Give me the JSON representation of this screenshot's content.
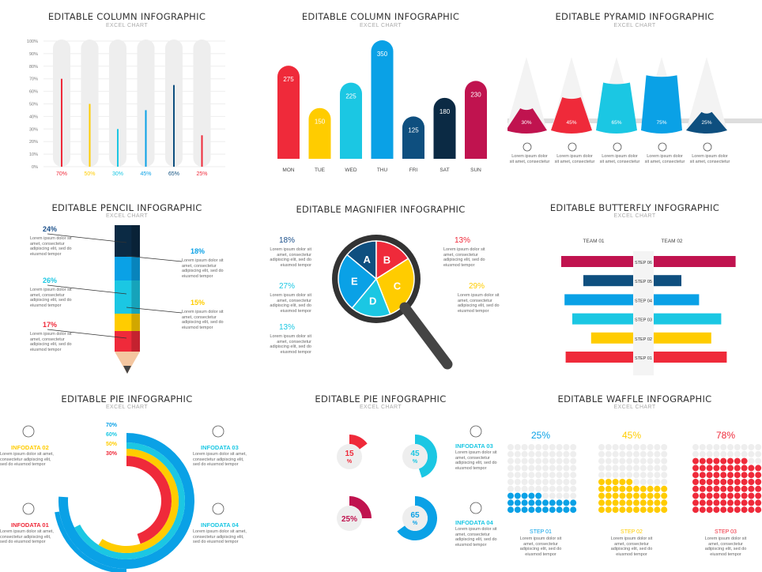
{
  "colors": {
    "red": "#ef2a3a",
    "yellow": "#ffcc00",
    "cyan": "#1bc7e3",
    "blue": "#0aa1e6",
    "navy": "#0e4f7f",
    "dark": "#0b2a44",
    "crimson": "#c0134f",
    "grey": "#eeeeee"
  },
  "panels": [
    {
      "title": "EDITABLE COLUMN INFOGRAPHIC",
      "subtitle": "EXCEL CHART"
    },
    {
      "title": "EDITABLE COLUMN INFOGRAPHIC",
      "subtitle": "EXCEL CHART"
    },
    {
      "title": "EDITABLE PYRAMID INFOGRAPHIC",
      "subtitle": "EXCEL CHART"
    },
    {
      "title": "EDITABLE PENCIL INFOGRAPHIC",
      "subtitle": "EXCEL CHART"
    },
    {
      "title": "EDITABLE MAGNIFIER INFOGRAPHIC",
      "subtitle": ""
    },
    {
      "title": "EDITABLE BUTTERFLY INFOGRAPHIC",
      "subtitle": "EXCEL CHART"
    },
    {
      "title": "EDITABLE PIE INFOGRAPHIC",
      "subtitle": "EXCEL CHART"
    },
    {
      "title": "EDITABLE PIE INFOGRAPHIC",
      "subtitle": "EXCEL CHART"
    },
    {
      "title": "EDITABLE WAFFLE INFOGRAPHIC",
      "subtitle": "EXCEL CHART"
    }
  ],
  "lorem": "Lorem ipsum dolor sit amet, consectetur adipiscing elit, sed do eiusmod tempor",
  "lorem_short": "Lorem ipsum dolor sit amet, consectetur",
  "chart_data": [
    {
      "type": "bar",
      "categories": [
        "70%",
        "50%",
        "30%",
        "45%",
        "65%",
        "25%"
      ],
      "values": [
        70,
        50,
        30,
        45,
        65,
        25
      ],
      "ylim": [
        0,
        100
      ],
      "yticks": [
        "0%",
        "10%",
        "20%",
        "30%",
        "40%",
        "50%",
        "60%",
        "70%",
        "80%",
        "90%",
        "100%"
      ]
    },
    {
      "type": "bar",
      "categories": [
        "MON",
        "TUE",
        "WED",
        "THU",
        "FRI",
        "SAT",
        "SUN"
      ],
      "values": [
        275,
        150,
        225,
        350,
        125,
        180,
        230
      ]
    },
    {
      "type": "bar",
      "categories": [
        "30%",
        "45%",
        "65%",
        "75%",
        "25%"
      ],
      "values": [
        30,
        45,
        65,
        75,
        25
      ]
    },
    {
      "type": "bar",
      "labels": [
        "24%",
        "18%",
        "26%",
        "15%",
        "17%"
      ],
      "values": [
        24,
        18,
        26,
        15,
        17
      ]
    },
    {
      "type": "pie",
      "categories": [
        "A",
        "B",
        "C",
        "D",
        "E"
      ],
      "labels": [
        "18%",
        "13%",
        "29%",
        "13%",
        "27%"
      ]
    },
    {
      "type": "bar",
      "series": [
        {
          "name": "TEAM 01",
          "values": [
            65,
            45,
            62,
            55,
            38,
            61
          ]
        },
        {
          "name": "TEAM 02",
          "values": [
            74,
            25,
            41,
            61,
            52,
            66
          ]
        }
      ],
      "categories": [
        "STEP 06",
        "STEP 05",
        "STEP 04",
        "STEP 03",
        "STEP 02",
        "STEP 01"
      ]
    },
    {
      "type": "pie",
      "labels": [
        "70%",
        "60%",
        "50%",
        "30%"
      ],
      "values": [
        70,
        60,
        50,
        30
      ]
    },
    {
      "type": "pie",
      "labels": [
        "15%",
        "45%",
        "25%",
        "65%"
      ],
      "values": [
        15,
        45,
        25,
        65
      ]
    },
    {
      "type": "bar",
      "categories": [
        "STEP 01",
        "STEP 02",
        "STEP 03"
      ],
      "values": [
        25,
        45,
        78
      ],
      "labels": [
        "25%",
        "45%",
        "78%"
      ]
    }
  ],
  "pie1_info": [
    "INFODATA 02",
    "INFODATA 01",
    "INFODATA 03",
    "INFODATA 04",
    "INFODATA 01",
    "INFODATA 02"
  ],
  "pie2_info": [
    "INFODATA 03",
    "INFODATA 04"
  ],
  "pie2_pct_labels": [
    "15\n%",
    "45\n%",
    "25%",
    "65\n%"
  ]
}
